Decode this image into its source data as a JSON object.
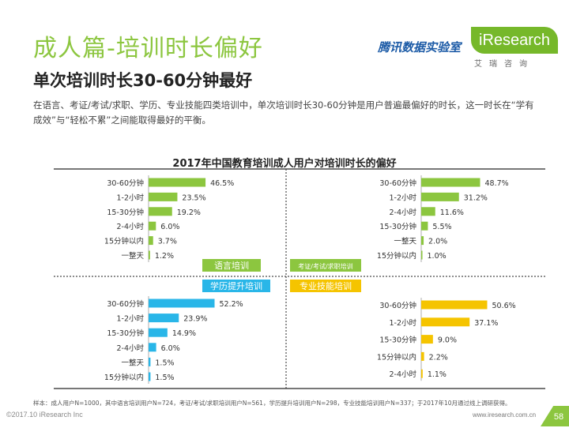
{
  "header": {
    "title": "成人篇-培训时长偏好",
    "subtitle": "单次培训时长30-60分钟最好",
    "description": "在语言、考证/考试/求职、学历、专业技能四类培训中，单次培训时长30-60分钟是用户普遍最偏好的时长，这一时长在“学有成效”与“轻松不累”之间能取得最好的平衡。"
  },
  "logos": {
    "tencent": "腾讯数据实验室",
    "iresearch": "iResearch",
    "iresearch_sub": "艾瑞咨询"
  },
  "colors": {
    "title_green": "#8cc63f",
    "bar_green": "#8cc63f",
    "bar_blue": "#29b6e8",
    "bar_yellow": "#f5c400",
    "divider": "#4a4a4a"
  },
  "chart_data": [
    {
      "type": "bar",
      "orientation": "horizontal",
      "panel_label": "语言培训",
      "categories": [
        "30-60分钟",
        "1-2小时",
        "15-30分钟",
        "2-4小时",
        "15分钟以内",
        "一整天"
      ],
      "values": [
        46.5,
        23.5,
        19.2,
        6.0,
        3.7,
        1.2
      ],
      "value_labels": [
        "46.5%",
        "23.5%",
        "19.2%",
        "6.0%",
        "3.7%",
        "1.2%"
      ],
      "color": "#8cc63f"
    },
    {
      "type": "bar",
      "orientation": "horizontal",
      "panel_label": "考证/考试/求职培训",
      "categories": [
        "30-60分钟",
        "1-2小时",
        "2-4小时",
        "15-30分钟",
        "一整天",
        "15分钟以内"
      ],
      "values": [
        48.7,
        31.2,
        11.6,
        5.5,
        2.0,
        1.0
      ],
      "value_labels": [
        "48.7%",
        "31.2%",
        "11.6%",
        "5.5%",
        "2.0%",
        "1.0%"
      ],
      "color": "#8cc63f"
    },
    {
      "type": "bar",
      "orientation": "horizontal",
      "panel_label": "学历提升培训",
      "categories": [
        "30-60分钟",
        "1-2小时",
        "15-30分钟",
        "2-4小时",
        "一整天",
        "15分钟以内"
      ],
      "values": [
        52.2,
        23.9,
        14.9,
        6.0,
        1.5,
        1.5
      ],
      "value_labels": [
        "52.2%",
        "23.9%",
        "14.9%",
        "6.0%",
        "1.5%",
        "1.5%"
      ],
      "color": "#29b6e8"
    },
    {
      "type": "bar",
      "orientation": "horizontal",
      "panel_label": "专业技能培训",
      "categories": [
        "30-60分钟",
        "1-2小时",
        "15-30分钟",
        "15分钟以内",
        "2-4小时"
      ],
      "values": [
        50.6,
        37.1,
        9.0,
        2.2,
        1.1
      ],
      "value_labels": [
        "50.6%",
        "37.1%",
        "9.0%",
        "2.2%",
        "1.1%"
      ],
      "color": "#f5c400"
    }
  ],
  "chart_title": "2017年中国教育培训成人用户对培训时长的偏好",
  "footer": {
    "note": "样本：成人用户N=1000，其中语言培训用户N=724，考证/考试/求职培训用户N=561，学历提升培训用户N=298，专业技能培训用户N=337；于2017年10月通过线上调研获得。",
    "source": "©2017.10 iResearch Inc",
    "url": "www.iresearch.com.cn",
    "page": "58"
  }
}
